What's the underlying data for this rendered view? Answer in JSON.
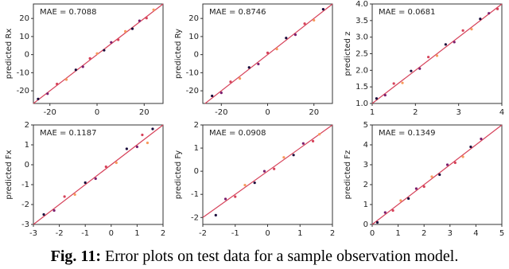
{
  "chart_data": [
    {
      "type": "scatter",
      "annotation": "MAE = 0.7088",
      "ylabel": "predicted Rx",
      "x": [
        -25,
        -21,
        -17,
        -13,
        -9,
        -6,
        -3,
        0,
        3,
        6,
        9,
        12,
        15,
        18,
        21,
        24
      ],
      "values": [
        -24.5,
        -21.6,
        -16.2,
        -13.8,
        -8.4,
        -6.7,
        -2.1,
        0.6,
        2.4,
        6.8,
        8.2,
        12.9,
        14.3,
        18.7,
        20.2,
        24.8
      ],
      "xlim": [
        -27,
        28
      ],
      "ylim": [
        -27,
        28
      ],
      "xticks": [
        -20,
        0,
        20
      ],
      "yticks": [
        -20,
        -10,
        0,
        10,
        20
      ],
      "colors": [
        "#1a0b3b",
        "#7a1f6e",
        "#d6425a",
        "#f89b5c"
      ],
      "line_color": "#d6425a"
    },
    {
      "type": "scatter",
      "annotation": "MAE = 0.8746",
      "ylabel": "predicted Ry",
      "x": [
        -24,
        -20,
        -16,
        -12,
        -8,
        -4,
        0,
        4,
        8,
        12,
        16,
        20,
        24
      ],
      "values": [
        -22.8,
        -21.1,
        -15.0,
        -13.2,
        -7.1,
        -5.2,
        1.0,
        3.1,
        9.2,
        11.0,
        17.1,
        19.0,
        25.1
      ],
      "xlim": [
        -28,
        28
      ],
      "ylim": [
        -27,
        28
      ],
      "xticks": [
        -20,
        0,
        20
      ],
      "yticks": [
        -20,
        -10,
        0,
        10,
        20
      ],
      "colors": [
        "#1a0b3b",
        "#7a1f6e",
        "#d6425a",
        "#f89b5c"
      ],
      "line_color": "#d6425a"
    },
    {
      "type": "scatter",
      "annotation": "MAE = 0.0681",
      "ylabel": "predicted z",
      "x": [
        1.1,
        1.3,
        1.5,
        1.7,
        1.9,
        2.1,
        2.3,
        2.5,
        2.7,
        2.9,
        3.1,
        3.3,
        3.5,
        3.7,
        3.9
      ],
      "values": [
        1.15,
        1.25,
        1.6,
        1.62,
        1.98,
        2.05,
        2.4,
        2.44,
        2.78,
        2.85,
        3.2,
        3.24,
        3.55,
        3.72,
        3.85
      ],
      "xlim": [
        1,
        4
      ],
      "ylim": [
        1,
        4
      ],
      "xticks": [
        1,
        2,
        3,
        4
      ],
      "yticks": [
        {
          "value": 1,
          "label": "1.0"
        },
        1.5,
        {
          "value": 2,
          "label": "2.0"
        },
        2.5,
        {
          "value": 3,
          "label": "3.0"
        },
        3.5,
        {
          "value": 4,
          "label": "4.0"
        }
      ],
      "colors": [
        "#1a0b3b",
        "#7a1f6e",
        "#d6425a",
        "#f89b5c"
      ],
      "line_color": "#d6425a"
    },
    {
      "type": "scatter",
      "annotation": "MAE = 0.1187",
      "ylabel": "predicted Fx",
      "x": [
        -2.6,
        -2.2,
        -1.8,
        -1.4,
        -1.0,
        -0.6,
        -0.2,
        0.2,
        0.6,
        1.0,
        1.2,
        1.4,
        1.6
      ],
      "values": [
        -2.5,
        -2.3,
        -1.6,
        -1.5,
        -0.9,
        -0.7,
        -0.1,
        0.1,
        0.8,
        0.9,
        1.5,
        1.1,
        1.8
      ],
      "xlim": [
        -3,
        2
      ],
      "ylim": [
        -3,
        2
      ],
      "xticks": [
        -3,
        -2,
        -1,
        0,
        1,
        2
      ],
      "yticks": [
        -3,
        -2,
        -1,
        0,
        1,
        2
      ],
      "colors": [
        "#1a0b3b",
        "#7a1f6e",
        "#d6425a",
        "#f89b5c"
      ],
      "line_color": "#d6425a"
    },
    {
      "type": "scatter",
      "annotation": "MAE = 0.0908",
      "ylabel": "predicted Fy",
      "x": [
        -1.6,
        -1.3,
        -1.0,
        -0.7,
        -0.4,
        -0.1,
        0.2,
        0.5,
        0.8,
        1.1,
        1.4,
        1.6
      ],
      "values": [
        -1.9,
        -1.2,
        -1.1,
        -0.6,
        -0.5,
        0.0,
        0.1,
        0.6,
        0.7,
        1.2,
        1.3,
        1.6
      ],
      "xlim": [
        -2,
        2
      ],
      "ylim": [
        -2.3,
        2
      ],
      "xticks": [
        -2,
        -1,
        0,
        1,
        2
      ],
      "yticks": [
        -2,
        -1,
        0,
        1,
        2
      ],
      "colors": [
        "#1a0b3b",
        "#7a1f6e",
        "#d6425a",
        "#f89b5c"
      ],
      "line_color": "#d6425a"
    },
    {
      "type": "scatter",
      "annotation": "MAE = 0.1349",
      "ylabel": "predicted Fz",
      "x": [
        0.2,
        0.5,
        0.8,
        1.1,
        1.4,
        1.7,
        2.0,
        2.3,
        2.6,
        2.9,
        3.2,
        3.5,
        3.8,
        4.2
      ],
      "values": [
        0.1,
        0.6,
        0.7,
        1.2,
        1.3,
        1.8,
        1.9,
        2.4,
        2.5,
        3.0,
        3.1,
        3.4,
        3.9,
        4.3
      ],
      "xlim": [
        0,
        5
      ],
      "ylim": [
        0,
        5
      ],
      "xticks": [
        0,
        1,
        2,
        3,
        4,
        5
      ],
      "yticks": [
        0,
        1,
        2,
        3,
        4,
        5
      ],
      "colors": [
        "#1a0b3b",
        "#7a1f6e",
        "#d6425a",
        "#f89b5c"
      ],
      "line_color": "#d6425a"
    }
  ],
  "caption": {
    "label": "Fig. 11:",
    "text": "Error plots on test data for a sample observation model."
  }
}
